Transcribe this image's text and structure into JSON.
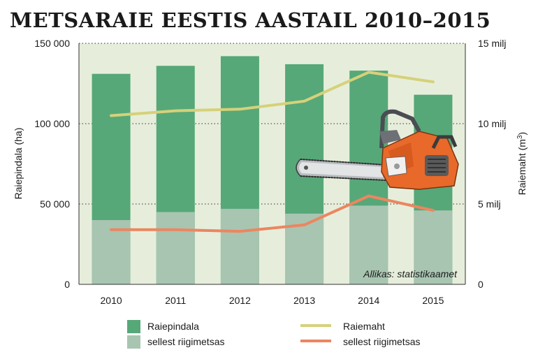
{
  "title": "METSARAIE EESTIS AASTAIL 2010–2015",
  "source": "Allikas: statistikaamet",
  "colors": {
    "plot_bg": "#e6eedb",
    "bar_total": "#56a878",
    "bar_state": "#a8c5b1",
    "line_total": "#d6d17a",
    "line_state": "#ec8660",
    "gridline": "#555555"
  },
  "chart_data": {
    "type": "bar",
    "categories": [
      "2010",
      "2011",
      "2012",
      "2013",
      "2014",
      "2015"
    ],
    "left_axis": {
      "label": "Raiepindala (ha)",
      "ylim": [
        0,
        150000
      ],
      "ticks": [
        {
          "value": 0,
          "label": "0"
        },
        {
          "value": 50000,
          "label": "50 000"
        },
        {
          "value": 100000,
          "label": "100 000"
        },
        {
          "value": 150000,
          "label": "150 000"
        }
      ]
    },
    "right_axis": {
      "label": "Raiemaht (m",
      "label_sup": "3",
      "label_end": ")",
      "ylim": [
        0,
        15
      ],
      "ticks": [
        {
          "value": 0,
          "label": "0"
        },
        {
          "value": 5,
          "label": "5 milj"
        },
        {
          "value": 10,
          "label": "10 milj"
        },
        {
          "value": 15,
          "label": "15 milj"
        }
      ]
    },
    "grid": true,
    "legend_position": "bottom",
    "series": [
      {
        "name": "Raiepindala",
        "kind": "bar",
        "axis": "left",
        "values": [
          131000,
          136000,
          142000,
          137000,
          133000,
          118000
        ]
      },
      {
        "name": "sellest riigimetsas",
        "kind": "bar",
        "axis": "left",
        "values": [
          40000,
          45000,
          47000,
          44000,
          49000,
          46000
        ]
      },
      {
        "name": "Raiemaht",
        "kind": "line",
        "axis": "right",
        "values": [
          10.5,
          10.8,
          10.9,
          11.4,
          13.2,
          12.6
        ]
      },
      {
        "name": "sellest riigimetsas",
        "kind": "line",
        "axis": "right",
        "values": [
          3.4,
          3.4,
          3.3,
          3.7,
          5.5,
          4.6
        ]
      }
    ]
  },
  "decoration": {
    "icon": "chainsaw-icon"
  }
}
